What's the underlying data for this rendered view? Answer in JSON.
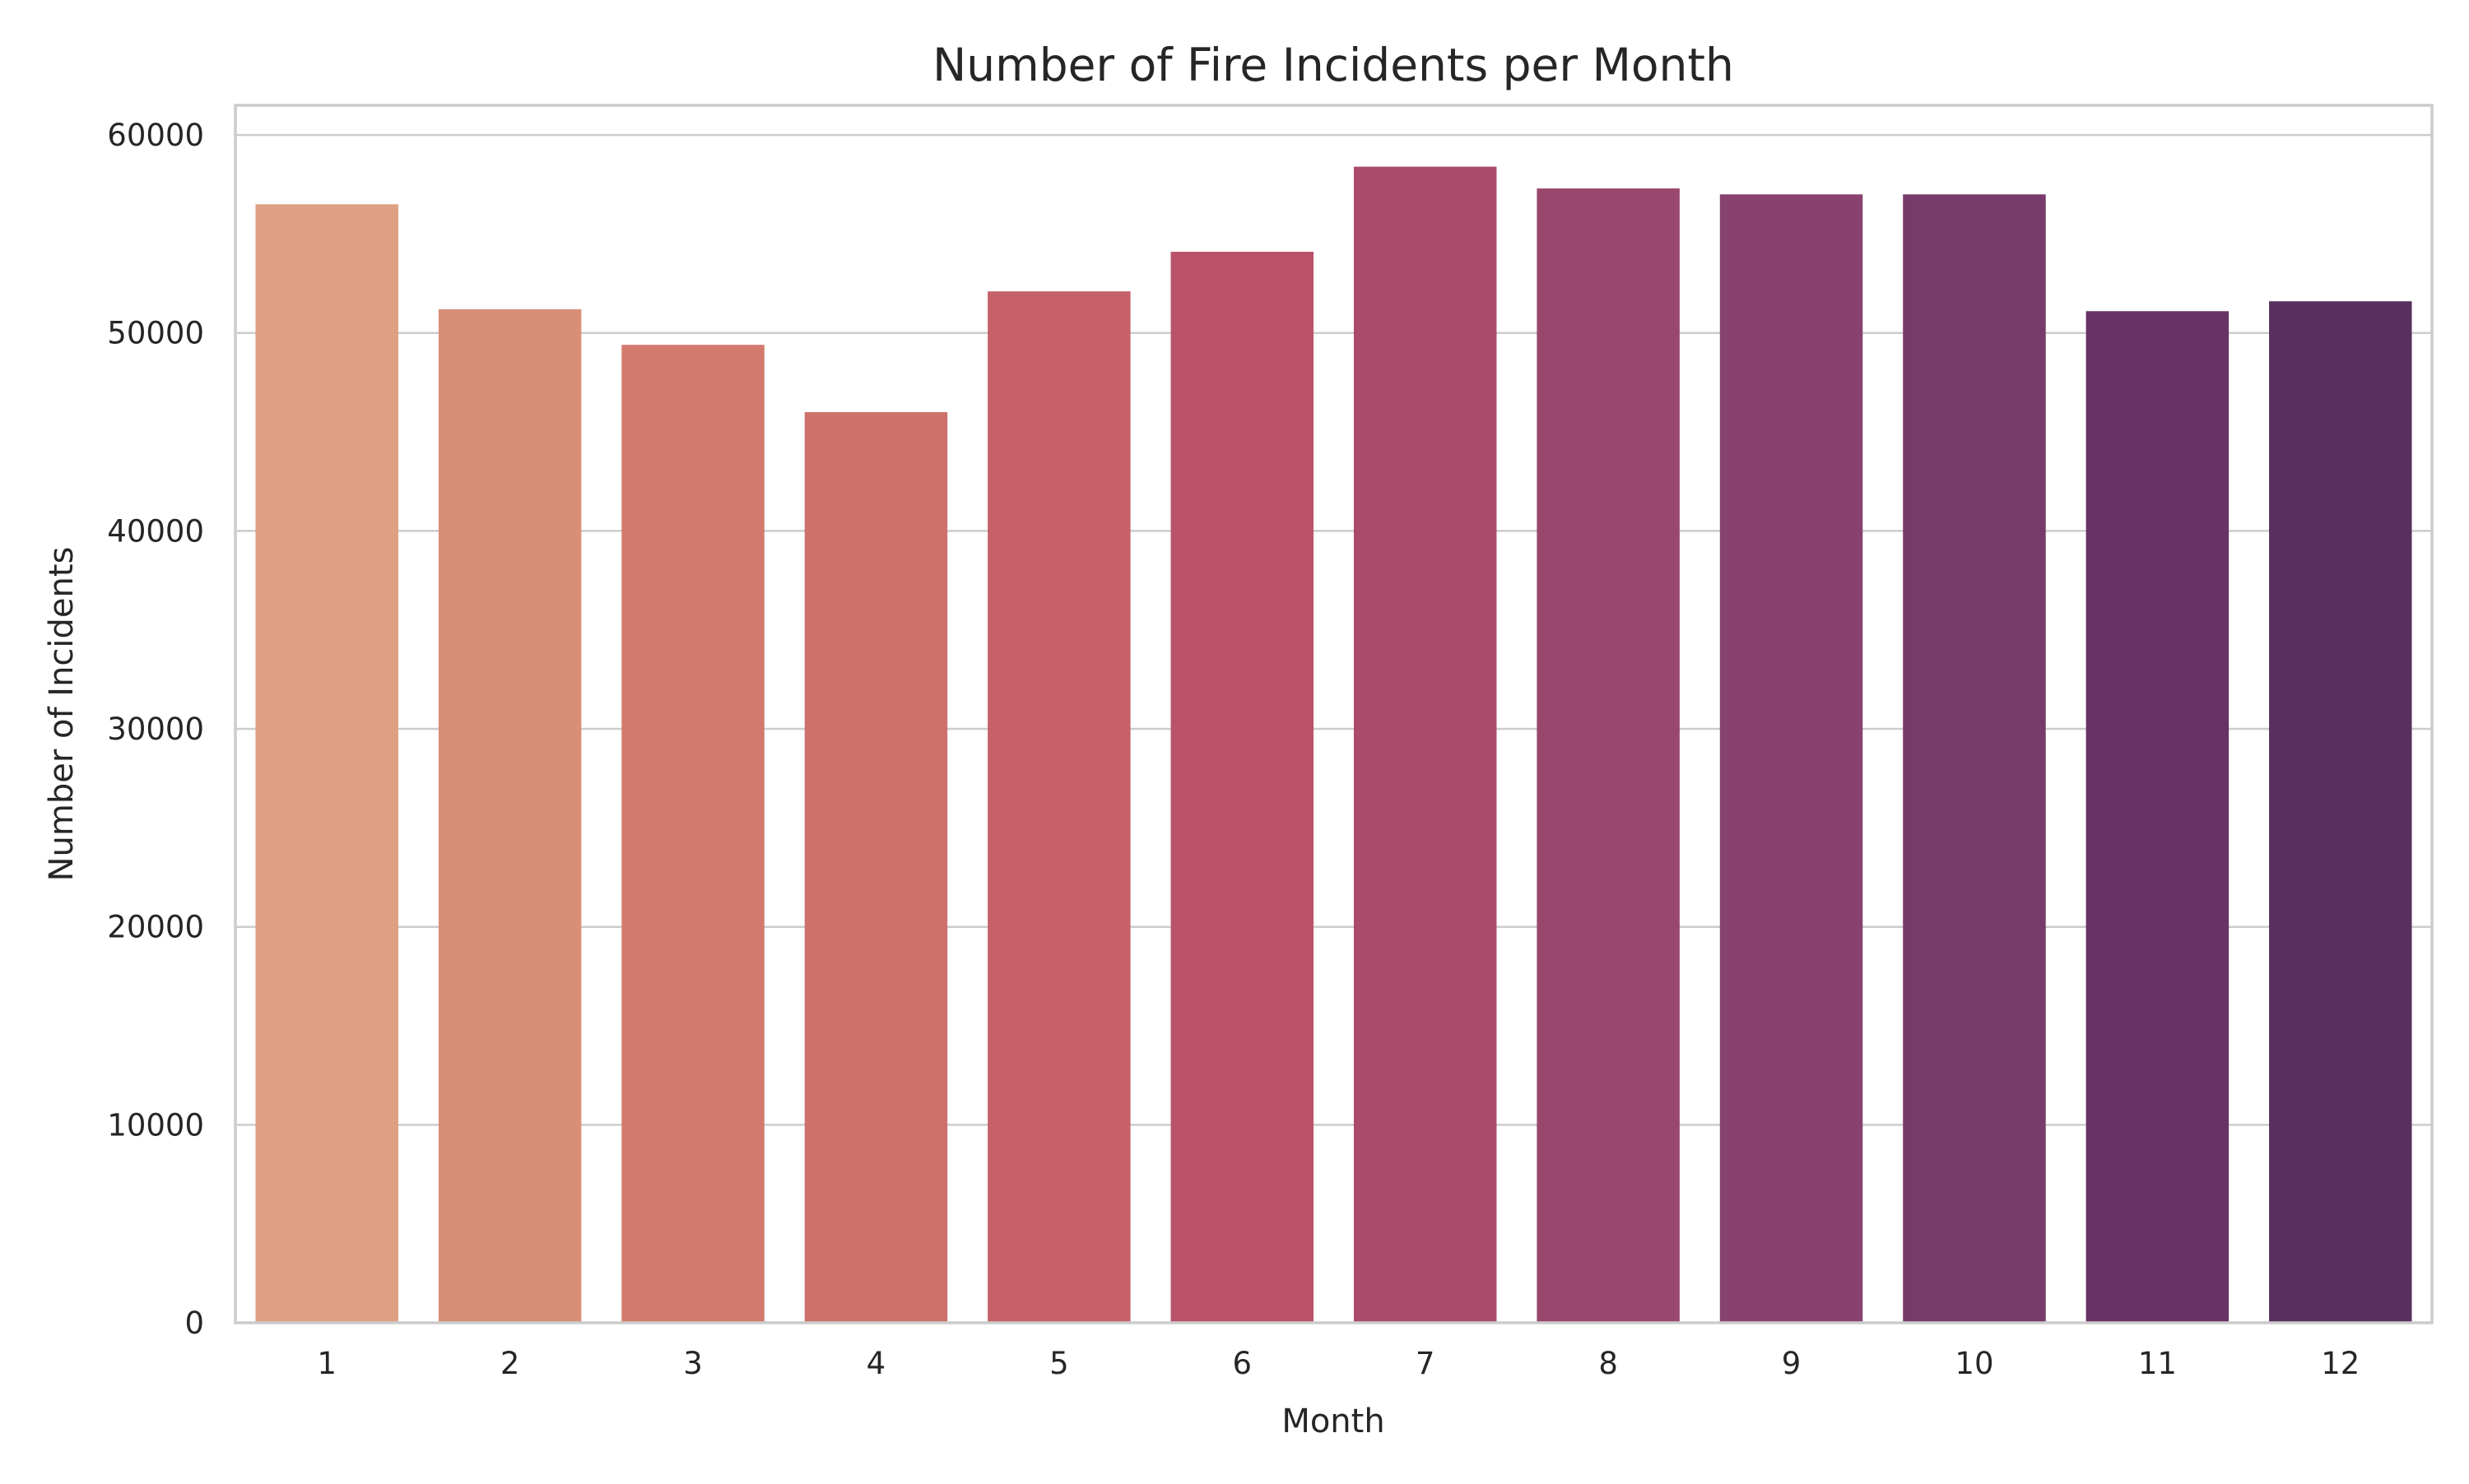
{
  "chart_data": {
    "type": "bar",
    "title": "Number of Fire Incidents per Month",
    "xlabel": "Month",
    "ylabel": "Number of Incidents",
    "categories": [
      "1",
      "2",
      "3",
      "4",
      "5",
      "6",
      "7",
      "8",
      "9",
      "10",
      "11",
      "12"
    ],
    "values": [
      56500,
      51200,
      49400,
      46000,
      52100,
      54100,
      58400,
      57300,
      57000,
      57000,
      51100,
      51600
    ],
    "colors": [
      "#dea083",
      "#d78f78",
      "#d27a6d",
      "#cd726a",
      "#c66169",
      "#b9526a",
      "#ab4b6c",
      "#9a476e",
      "#88426f",
      "#783a6a",
      "#673264",
      "#58305f"
    ],
    "ylim": [
      0,
      60000
    ],
    "yticks": [
      "0",
      "10000",
      "20000",
      "30000",
      "40000",
      "50000",
      "60000"
    ],
    "grid": true,
    "legend": "none"
  }
}
